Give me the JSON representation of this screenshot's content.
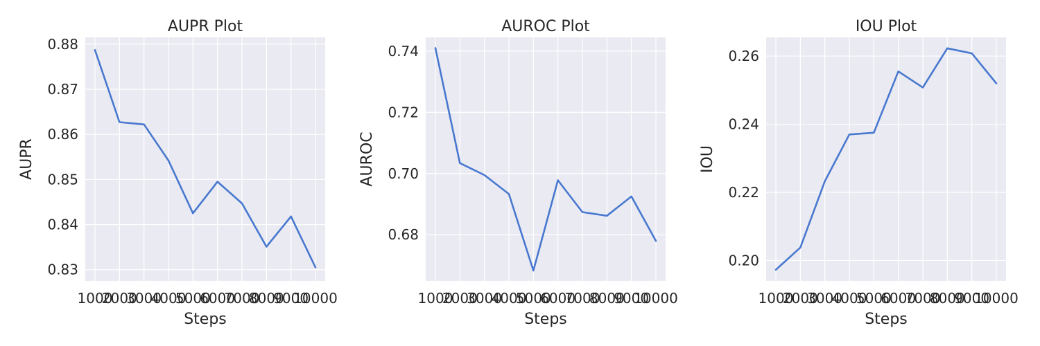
{
  "chart_data": [
    {
      "type": "line",
      "title": "AUPR Plot",
      "xlabel": "Steps",
      "ylabel": "AUPR",
      "x": [
        1000,
        2000,
        3000,
        4000,
        5000,
        6000,
        7000,
        8000,
        9000,
        10000
      ],
      "x_tick_labels": [
        "1000",
        "2000",
        "3000",
        "4000",
        "5000",
        "6000",
        "7000",
        "8000",
        "9000",
        "10000"
      ],
      "y_ticks": [
        0.83,
        0.84,
        0.85,
        0.86,
        0.87,
        0.88
      ],
      "y_tick_labels": [
        "0.83",
        "0.84",
        "0.85",
        "0.86",
        "0.87",
        "0.88"
      ],
      "ylim": [
        0.8275,
        0.8815
      ],
      "series": [
        {
          "values": [
            0.8787,
            0.8627,
            0.8622,
            0.8542,
            0.8425,
            0.8495,
            0.8447,
            0.8351,
            0.8418,
            0.8305
          ]
        }
      ],
      "grid": true
    },
    {
      "type": "line",
      "title": "AUROC Plot",
      "xlabel": "Steps",
      "ylabel": "AUROC",
      "x": [
        1000,
        2000,
        3000,
        4000,
        5000,
        6000,
        7000,
        8000,
        9000,
        10000
      ],
      "x_tick_labels": [
        "1000",
        "2000",
        "3000",
        "4000",
        "5000",
        "6000",
        "7000",
        "8000",
        "9000",
        "10000"
      ],
      "y_ticks": [
        0.68,
        0.7,
        0.72,
        0.74
      ],
      "y_tick_labels": [
        "0.68",
        "0.70",
        "0.72",
        "0.74"
      ],
      "ylim": [
        0.6649,
        0.7445
      ],
      "series": [
        {
          "values": [
            0.741,
            0.7034,
            0.6995,
            0.6933,
            0.6683,
            0.6978,
            0.6874,
            0.6862,
            0.6925,
            0.678
          ]
        }
      ],
      "grid": true
    },
    {
      "type": "line",
      "title": "IOU Plot",
      "xlabel": "Steps",
      "ylabel": "IOU",
      "x": [
        1000,
        2000,
        3000,
        4000,
        5000,
        6000,
        7000,
        8000,
        9000,
        10000
      ],
      "x_tick_labels": [
        "1000",
        "2000",
        "3000",
        "4000",
        "5000",
        "6000",
        "7000",
        "8000",
        "9000",
        "10000"
      ],
      "y_ticks": [
        0.2,
        0.22,
        0.24,
        0.26
      ],
      "y_tick_labels": [
        "0.20",
        "0.22",
        "0.24",
        "0.26"
      ],
      "ylim": [
        0.194,
        0.2655
      ],
      "series": [
        {
          "values": [
            0.1973,
            0.2038,
            0.2233,
            0.237,
            0.2375,
            0.2555,
            0.2508,
            0.2623,
            0.2608,
            0.252
          ]
        }
      ],
      "grid": true
    }
  ],
  "colors": {
    "line": "#4878cf",
    "panel_bg": "#eaeaf2",
    "grid": "#ffffff",
    "text": "#262626"
  }
}
